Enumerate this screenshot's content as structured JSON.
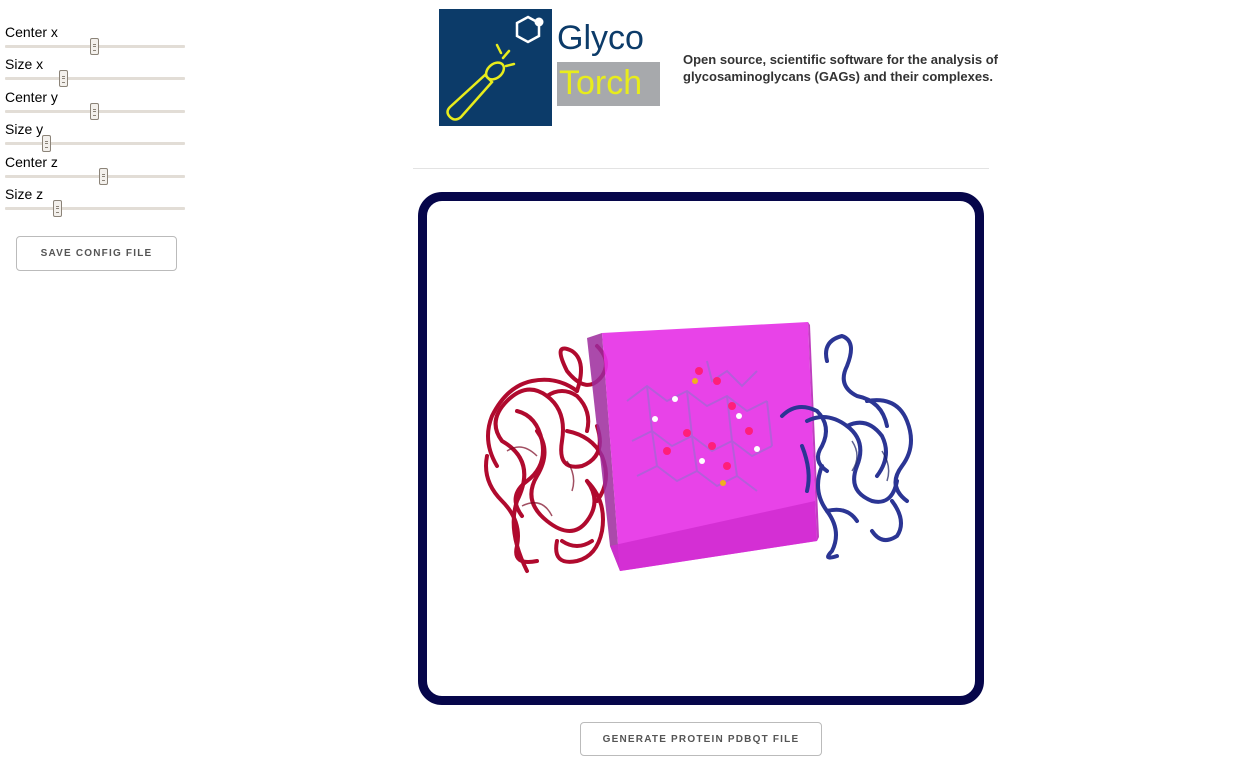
{
  "sidebar": {
    "sliders": [
      {
        "label": "Center x",
        "value": 0.5
      },
      {
        "label": "Size x",
        "value": 0.33
      },
      {
        "label": "Center y",
        "value": 0.5
      },
      {
        "label": "Size y",
        "value": 0.23
      },
      {
        "label": "Center z",
        "value": 0.55
      },
      {
        "label": "Size z",
        "value": 0.29
      }
    ],
    "save_button_label": "SAVE CONFIG FILE"
  },
  "header": {
    "logo_word_1": "Glyco",
    "logo_word_2": "Torch",
    "tagline": "Open source, scientific software for the analysis of glycosaminoglycans (GAGs) and their complexes."
  },
  "viewer": {
    "border_color": "#06064a",
    "box_color": "#e633e6",
    "chain_a_color": "#b00a2e",
    "chain_b_color": "#2b3594",
    "icon": "molecule-3d-view"
  },
  "footer": {
    "generate_button_label": "GENERATE PROTEIN PDBQT FILE"
  }
}
